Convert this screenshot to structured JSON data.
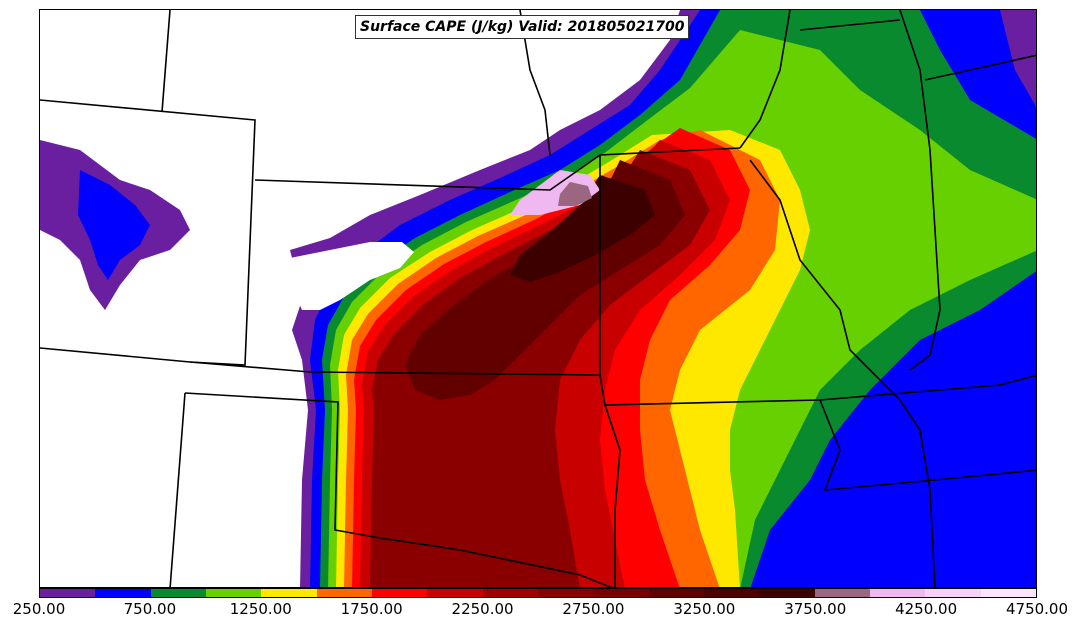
{
  "title": "Surface CAPE (J/kg) Valid: 201805021700",
  "colorbar": {
    "min": 250,
    "max": 4750,
    "step": 250,
    "tick_labels": [
      "250.00",
      "750.00",
      "1250.00",
      "1750.00",
      "2250.00",
      "2750.00",
      "3250.00",
      "3750.00",
      "4250.00",
      "4750.00"
    ],
    "colors": [
      "#6a1fa0",
      "#0000ff",
      "#0a8a2e",
      "#66d000",
      "#ffe800",
      "#ff6600",
      "#ff0000",
      "#c80000",
      "#a00000",
      "#8a0000",
      "#780000",
      "#620000",
      "#4e0000",
      "#3c0000",
      "#9a6680",
      "#f0b8f0",
      "#f8d0f8",
      "#fce4fc"
    ]
  },
  "legend_colors": {
    "land_background": "#ffffff",
    "border": "#000000"
  }
}
